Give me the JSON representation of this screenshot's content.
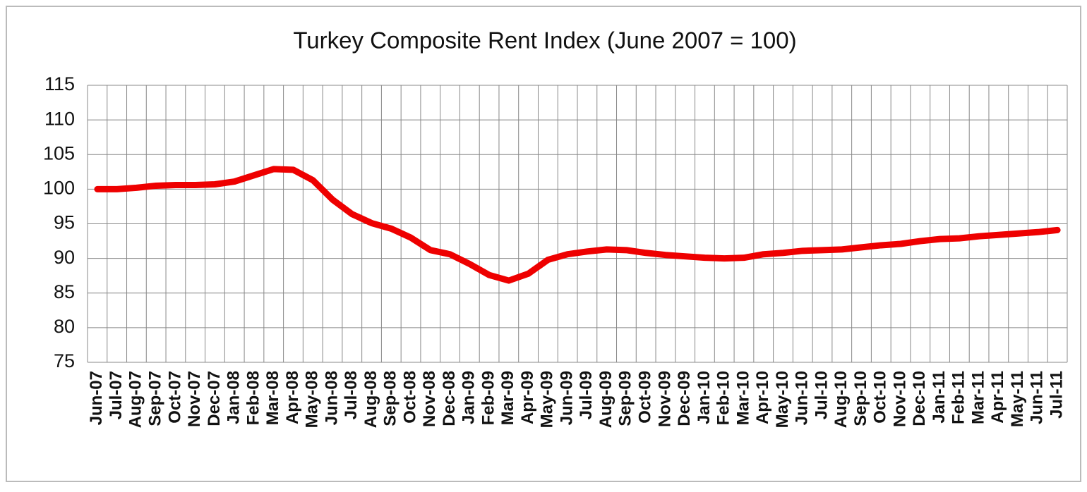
{
  "chart_data": {
    "type": "line",
    "title": "Turkey Composite Rent Index (June 2007 = 100)",
    "categories": [
      "Jun-07",
      "Jul-07",
      "Aug-07",
      "Sep-07",
      "Oct-07",
      "Nov-07",
      "Dec-07",
      "Jan-08",
      "Feb-08",
      "Mar-08",
      "Apr-08",
      "May-08",
      "Jun-08",
      "Jul-08",
      "Aug-08",
      "Sep-08",
      "Oct-08",
      "Nov-08",
      "Dec-08",
      "Jan-09",
      "Feb-09",
      "Mar-09",
      "Apr-09",
      "May-09",
      "Jun-09",
      "Jul-09",
      "Aug-09",
      "Sep-09",
      "Oct-09",
      "Nov-09",
      "Dec-09",
      "Jan-10",
      "Feb-10",
      "Mar-10",
      "Apr-10",
      "May-10",
      "Jun-10",
      "Jul-10",
      "Aug-10",
      "Sep-10",
      "Oct-10",
      "Nov-10",
      "Dec-10",
      "Jan-11",
      "Feb-11",
      "Mar-11",
      "Apr-11",
      "May-11",
      "Jun-11",
      "Jul-11"
    ],
    "values": [
      100,
      100,
      100.2,
      100.5,
      100.6,
      100.6,
      100.7,
      101.1,
      102,
      102.9,
      102.8,
      101.3,
      98.5,
      96.4,
      95.1,
      94.3,
      93,
      91.2,
      90.6,
      89.2,
      87.6,
      86.8,
      87.8,
      89.8,
      90.6,
      91,
      91.3,
      91.2,
      90.8,
      90.5,
      90.3,
      90.1,
      90,
      90.1,
      90.6,
      90.8,
      91.1,
      91.2,
      91.3,
      91.6,
      91.9,
      92.1,
      92.5,
      92.8,
      92.9,
      93.2,
      93.4,
      93.6,
      93.8,
      94.1
    ],
    "color": "#ee0000",
    "ylim": [
      75,
      115
    ],
    "yticks": [
      75,
      80,
      85,
      90,
      95,
      100,
      105,
      110,
      115
    ],
    "grid": true
  }
}
